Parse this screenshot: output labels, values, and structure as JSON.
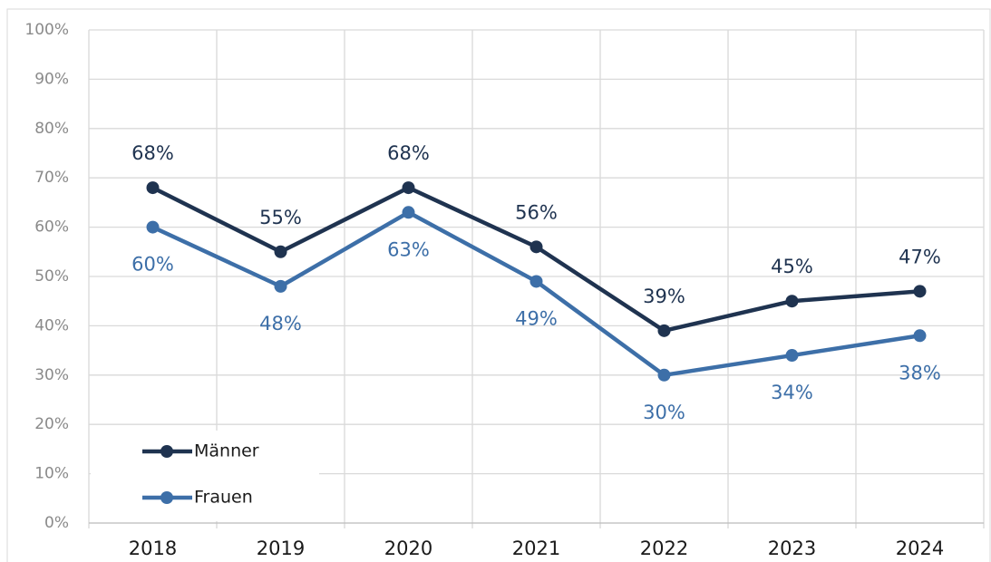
{
  "chart_data": {
    "type": "line",
    "categories": [
      "2018",
      "2019",
      "2020",
      "2021",
      "2022",
      "2023",
      "2024"
    ],
    "series": [
      {
        "name": "Männer",
        "color": "#1f3350",
        "values": [
          68,
          55,
          68,
          56,
          39,
          45,
          47
        ],
        "value_labels": [
          "68%",
          "55%",
          "68%",
          "56%",
          "39%",
          "45%",
          "47%"
        ]
      },
      {
        "name": "Frauen",
        "color": "#3d6fa8",
        "values": [
          60,
          48,
          63,
          49,
          30,
          34,
          38
        ],
        "value_labels": [
          "60%",
          "48%",
          "63%",
          "49%",
          "30%",
          "34%",
          "38%"
        ]
      }
    ],
    "ylim": [
      0,
      100
    ],
    "yticks": [
      {
        "value": 0,
        "label": "0%"
      },
      {
        "value": 10,
        "label": "10%"
      },
      {
        "value": 20,
        "label": "20%"
      },
      {
        "value": 30,
        "label": "30%"
      },
      {
        "value": 40,
        "label": "40%"
      },
      {
        "value": 50,
        "label": "50%"
      },
      {
        "value": 60,
        "label": "60%"
      },
      {
        "value": 70,
        "label": "70%"
      },
      {
        "value": 80,
        "label": "80%"
      },
      {
        "value": 90,
        "label": "90%"
      },
      {
        "value": 100,
        "label": "100%"
      }
    ],
    "grid": true,
    "legend": "lower left"
  }
}
